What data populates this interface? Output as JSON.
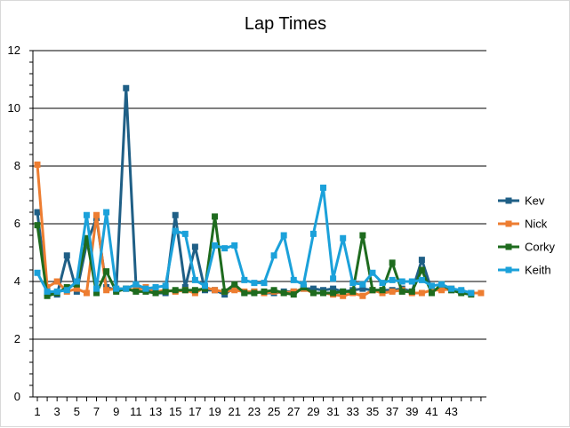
{
  "chart_data": {
    "type": "line",
    "title": "Lap Times",
    "xlabel": "",
    "ylabel": "",
    "x": [
      1,
      2,
      3,
      4,
      5,
      6,
      7,
      8,
      9,
      10,
      11,
      12,
      13,
      14,
      15,
      16,
      17,
      18,
      19,
      20,
      21,
      22,
      23,
      24,
      25,
      26,
      27,
      28,
      29,
      30,
      31,
      32,
      33,
      34,
      35,
      36,
      37,
      38,
      39,
      40,
      41,
      42,
      43,
      44,
      45,
      46
    ],
    "x_tick_labels": [
      "1",
      "3",
      "5",
      "7",
      "9",
      "11",
      "13",
      "15",
      "17",
      "19",
      "21",
      "23",
      "25",
      "27",
      "29",
      "31",
      "33",
      "35",
      "37",
      "39",
      "41",
      "43"
    ],
    "ylim": [
      0,
      12
    ],
    "y_ticks": [
      0,
      2,
      4,
      6,
      8,
      10,
      12
    ],
    "grid": "horizontal",
    "legend_position": "right",
    "series": [
      {
        "name": "Kev",
        "color": "#1F5F86",
        "values": [
          6.4,
          3.6,
          3.55,
          4.9,
          3.65,
          5.3,
          6.2,
          3.8,
          3.7,
          10.7,
          3.9,
          3.7,
          3.6,
          3.6,
          6.3,
          3.8,
          5.2,
          3.7,
          3.7,
          3.55,
          3.8,
          3.6,
          3.65,
          3.6,
          3.6,
          3.65,
          3.65,
          3.75,
          3.75,
          3.7,
          3.75,
          3.65,
          3.7,
          3.75,
          3.7,
          3.7,
          3.7,
          3.75,
          3.65,
          4.75,
          3.7,
          3.75,
          3.7,
          3.65,
          3.6,
          null
        ]
      },
      {
        "name": "Nick",
        "color": "#ED7D31",
        "values": [
          8.05,
          3.8,
          4.0,
          3.65,
          3.75,
          3.6,
          6.3,
          3.7,
          3.75,
          3.75,
          3.7,
          3.8,
          3.65,
          3.7,
          3.65,
          3.7,
          3.6,
          3.8,
          3.7,
          3.65,
          3.7,
          3.65,
          3.65,
          3.6,
          3.65,
          3.6,
          3.65,
          3.75,
          3.6,
          3.6,
          3.55,
          3.5,
          3.6,
          3.5,
          3.7,
          3.6,
          3.65,
          3.7,
          3.6,
          3.6,
          3.7,
          3.7,
          3.75,
          3.65,
          3.6,
          3.6
        ]
      },
      {
        "name": "Corky",
        "color": "#1E6B1E",
        "values": [
          5.95,
          3.5,
          3.6,
          3.8,
          3.9,
          5.5,
          3.6,
          4.35,
          3.65,
          3.75,
          3.65,
          3.65,
          3.6,
          3.65,
          3.7,
          3.7,
          3.7,
          3.75,
          6.25,
          3.65,
          3.9,
          3.6,
          3.6,
          3.65,
          3.7,
          3.6,
          3.55,
          3.8,
          3.6,
          3.6,
          3.6,
          3.65,
          3.65,
          5.6,
          3.7,
          3.7,
          4.65,
          3.65,
          3.65,
          4.4,
          3.6,
          3.9,
          3.7,
          3.6,
          3.55,
          null
        ]
      },
      {
        "name": "Keith",
        "color": "#1BA1DA",
        "values": [
          4.3,
          3.65,
          3.65,
          3.7,
          4.0,
          6.3,
          3.75,
          6.4,
          3.75,
          3.75,
          3.9,
          3.75,
          3.8,
          3.85,
          5.75,
          5.65,
          4.05,
          3.85,
          5.25,
          5.15,
          5.25,
          4.05,
          3.95,
          3.95,
          4.9,
          5.6,
          4.05,
          3.9,
          5.65,
          7.25,
          4.1,
          5.5,
          3.95,
          3.9,
          4.3,
          3.95,
          4.05,
          4.0,
          4.0,
          4.05,
          3.85,
          3.9,
          3.75,
          3.7,
          3.6,
          null
        ]
      }
    ]
  }
}
